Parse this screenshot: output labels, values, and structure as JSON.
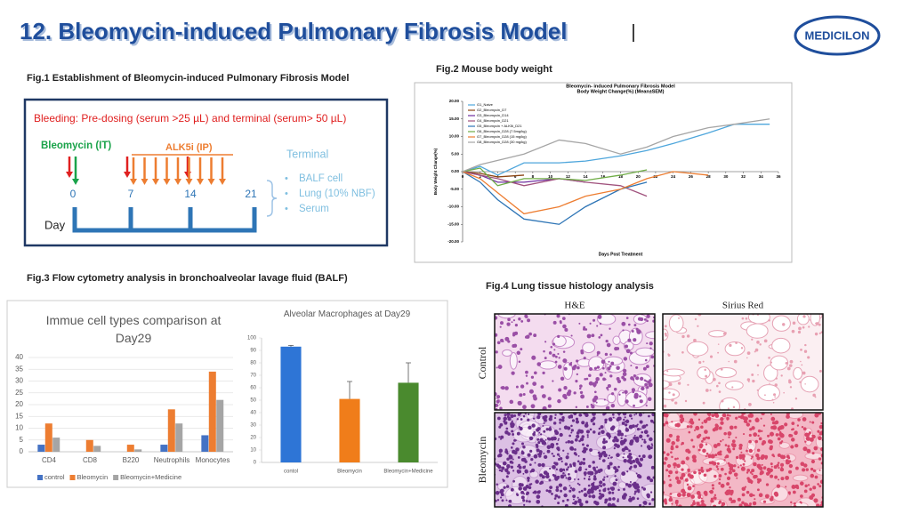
{
  "header": {
    "title": "12. Bleomycin-induced Pulmonary Fibrosis Model",
    "logo": "MEDICILON"
  },
  "fig1": {
    "caption": "Fig.1 Establishment of Bleomycin-induced Pulmonary Fibrosis Model",
    "bleeding": "Bleeding: Pre-dosing (serum >25 µL) and terminal (serum> 50 µL)",
    "bleomycin": "Bleomycin (IT)",
    "alk5i": "ALK5i (IP)",
    "days": [
      "0",
      "7",
      "14",
      "21"
    ],
    "day_label": "Day",
    "terminal": "Terminal",
    "endpoints": [
      "BALF cell",
      "Lung (10% NBF)",
      "Serum"
    ]
  },
  "captions": {
    "fig2": "Fig.2 Mouse body weight",
    "fig3": "Fig.3 Flow cytometry analysis in bronchoalveolar lavage fluid (BALF)"
  },
  "fig4": {
    "caption": "Fig.4 Lung tissue histology analysis",
    "columns": [
      "H&E",
      "Sirius Red"
    ],
    "rows": [
      "Control",
      "Bleomycin"
    ]
  },
  "chart_data": [
    {
      "type": "line",
      "title": "Bleomycin- induced Pulmonary Fibrosis Model",
      "subtitle": "Body Weight Change(%) (Mean±SEM)",
      "xlabel": "Days Post Treatment",
      "ylabel": "Body Weight Change(%)",
      "xlim": [
        0,
        36
      ],
      "xticks": [
        0,
        2,
        4,
        6,
        8,
        10,
        12,
        14,
        16,
        18,
        20,
        22,
        24,
        26,
        28,
        30,
        32,
        34,
        36
      ],
      "ylim": [
        -20,
        20
      ],
      "yticks": [
        {
          "value": -20,
          "label": "-20.00"
        },
        {
          "value": -15,
          "label": "-15.00"
        },
        {
          "value": -10,
          "label": "-10.00"
        },
        {
          "value": -5,
          "label": "-5.00"
        },
        {
          "value": 0,
          "label": "0.00"
        },
        {
          "value": 5,
          "label": "5.00"
        },
        {
          "value": 10,
          "label": "10.00"
        },
        {
          "value": 15,
          "label": "15.00"
        },
        {
          "value": 20,
          "label": "20.00"
        }
      ],
      "series": [
        {
          "name": "G1_Naive",
          "color": "#4ea6dc",
          "x": [
            0,
            2,
            4,
            7,
            11,
            14,
            18,
            21,
            24,
            28,
            31,
            35
          ],
          "values": [
            0,
            1.5,
            -1,
            2.5,
            2.5,
            3,
            4.5,
            6,
            8,
            11,
            13.5,
            13.5
          ]
        },
        {
          "name": "G2_Bleomycin_D7",
          "color": "#8b4513",
          "x": [
            0,
            2,
            4,
            7
          ],
          "values": [
            0,
            -0.5,
            -1.5,
            -1
          ]
        },
        {
          "name": "G3_Bleomycin_D14",
          "color": "#7030a0",
          "x": [
            0,
            2,
            4,
            7,
            11,
            14
          ],
          "values": [
            0,
            -1,
            -3,
            -3,
            -2,
            -3
          ]
        },
        {
          "name": "G4_Bleomycin_D21",
          "color": "#a0527d",
          "x": [
            0,
            2,
            4,
            7,
            11,
            14,
            18,
            21
          ],
          "values": [
            0,
            -1,
            -2,
            -4,
            -2,
            -3,
            -4,
            -7
          ]
        },
        {
          "name": "G5_Bleomycin + ALK5i_D21",
          "color": "#2e75b6",
          "x": [
            0,
            2,
            4,
            7,
            11,
            14,
            18,
            21
          ],
          "values": [
            0,
            -3,
            -8,
            -13.5,
            -15,
            -10,
            -5,
            -3
          ]
        },
        {
          "name": "G6_Bleomycin_D28 (7.5mg/kg)",
          "color": "#70ad47",
          "x": [
            0,
            2,
            4,
            7,
            11,
            14,
            18,
            21
          ],
          "values": [
            0,
            1,
            -4,
            -2,
            -2,
            -2.5,
            -1,
            0.5
          ]
        },
        {
          "name": "G7_Bleomycin_D28 (15 mg/kg)",
          "color": "#ed7d31",
          "x": [
            0,
            2,
            4,
            7,
            11,
            14,
            18,
            21,
            24,
            28
          ],
          "values": [
            0,
            -2,
            -6,
            -12,
            -10,
            -7,
            -5,
            -2,
            0,
            -1
          ]
        },
        {
          "name": "G8_Bleomycin_D28 (30 mg/kg)",
          "color": "#a5a5a5",
          "x": [
            0,
            2,
            7,
            11,
            14,
            18,
            21,
            24,
            28,
            31,
            35
          ],
          "values": [
            0,
            2,
            5,
            9,
            8,
            5,
            7,
            10,
            12.5,
            13.5,
            15
          ]
        }
      ]
    },
    {
      "type": "bar",
      "title": "Immue cell types comparison at Day29",
      "categories": [
        "CD4",
        "CD8",
        "B220",
        "Neutrophils",
        "Monocytes"
      ],
      "ylim": [
        0,
        40
      ],
      "yticks": [
        0,
        5,
        10,
        15,
        20,
        25,
        30,
        35,
        40
      ],
      "grid": true,
      "series": [
        {
          "name": "control",
          "color": "#4472c4",
          "values": [
            3,
            0,
            0,
            3,
            7
          ]
        },
        {
          "name": "Bleomycin",
          "color": "#ed7d31",
          "values": [
            12,
            5,
            3,
            18,
            34
          ]
        },
        {
          "name": "Bleomycin+Medicine",
          "color": "#a5a5a5",
          "values": [
            6,
            2.5,
            1,
            12,
            22
          ]
        }
      ]
    },
    {
      "type": "bar",
      "title": "Alveolar Macrophages at Day29",
      "categories": [
        "contol",
        "Bleomycin",
        "Bleomycin+Medicine"
      ],
      "values": [
        93,
        51,
        64
      ],
      "errors": [
        1,
        14,
        16
      ],
      "colors": [
        "#2e75d6",
        "#f07d1a",
        "#4a8a2e"
      ],
      "ylim": [
        0,
        100
      ],
      "yticks": [
        0,
        10,
        20,
        30,
        40,
        50,
        60,
        70,
        80,
        90,
        100
      ],
      "grid": false
    }
  ]
}
